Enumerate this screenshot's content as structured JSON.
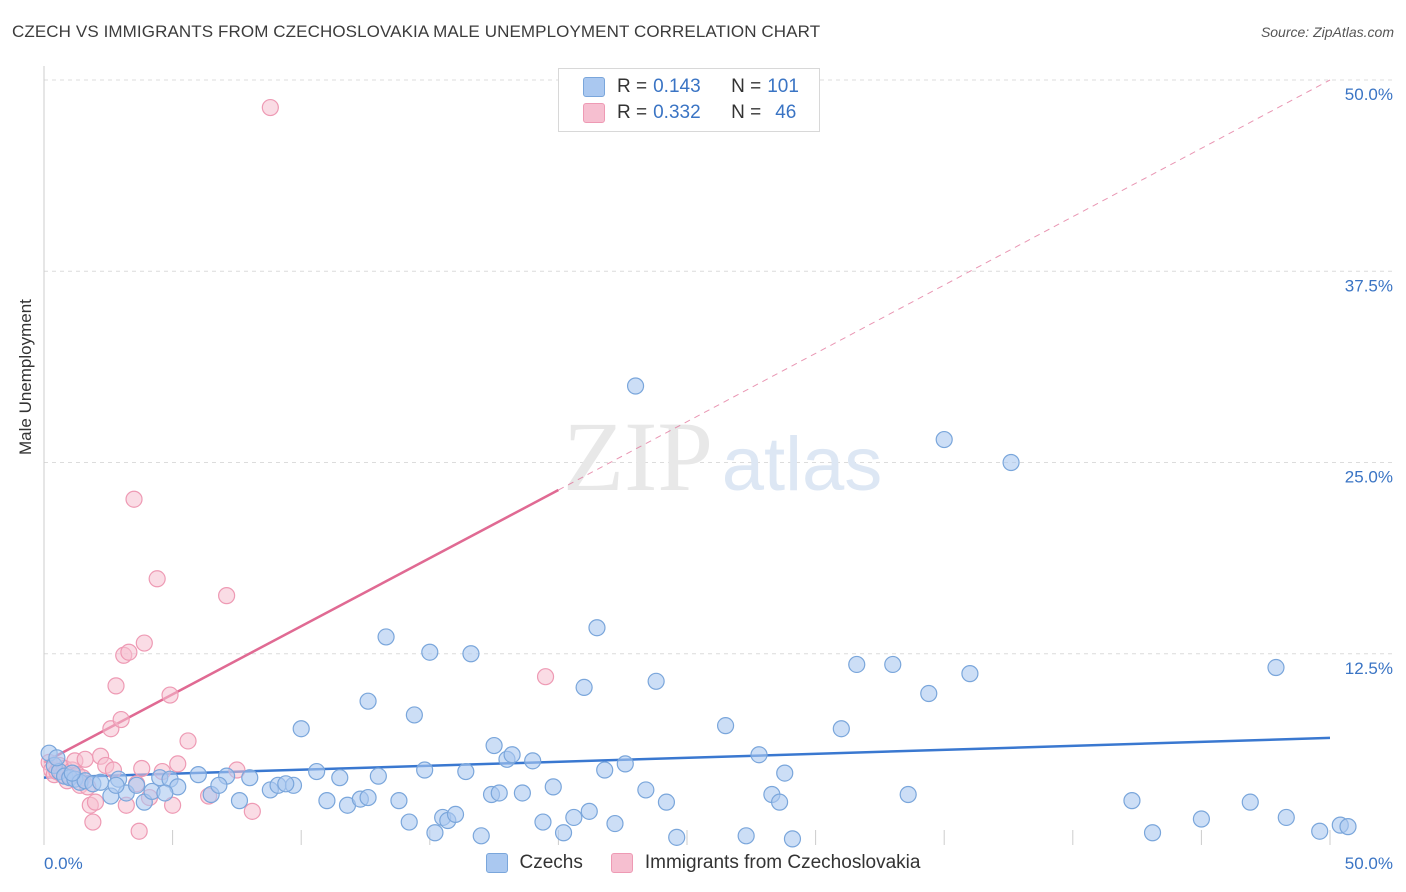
{
  "title": "CZECH VS IMMIGRANTS FROM CZECHOSLOVAKIA MALE UNEMPLOYMENT CORRELATION CHART",
  "source": "Source: ZipAtlas.com",
  "watermark": {
    "zip": "ZIP",
    "atlas": "atlas"
  },
  "colors": {
    "czech_fill": "#aac8f0",
    "czech_stroke": "#7aa6db",
    "czech_line": "#3a78d0",
    "imm_fill": "#f6bfd0",
    "imm_stroke": "#ee9ab4",
    "imm_line": "#e06a93",
    "grid": "#dcdcdc",
    "tick_text": "#3a74c4"
  },
  "legend": {
    "rows": [
      {
        "r_label": "R = ",
        "r_value": "0.143",
        "n_label": "N = ",
        "n_value": "101"
      },
      {
        "r_label": "R = ",
        "r_value": "0.332",
        "n_label": "N = ",
        "n_value": "46"
      }
    ]
  },
  "bottom_legend": [
    "Czechs",
    "Immigrants from Czechoslovakia"
  ],
  "chart_data": {
    "type": "scatter",
    "xlabel": "",
    "ylabel": "Male Unemployment",
    "xlim": [
      0,
      50
    ],
    "ylim": [
      0,
      50
    ],
    "x_tick_labels": [
      "0.0%",
      "50.0%"
    ],
    "y_ticks": [
      12.5,
      25.0,
      37.5,
      50.0
    ],
    "y_tick_labels": [
      "12.5%",
      "25.0%",
      "37.5%",
      "50.0%"
    ],
    "series": [
      {
        "name": "Czechs",
        "trend": {
          "x": [
            0,
            50
          ],
          "y": [
            4.4,
            7.0
          ]
        },
        "points": [
          [
            0.2,
            6.0
          ],
          [
            0.4,
            5.2
          ],
          [
            0.6,
            4.8
          ],
          [
            0.8,
            4.5
          ],
          [
            1.0,
            4.4
          ],
          [
            1.2,
            4.3
          ],
          [
            1.4,
            4.1
          ],
          [
            1.6,
            4.2
          ],
          [
            1.9,
            4.0
          ],
          [
            2.2,
            4.1
          ],
          [
            2.6,
            3.2
          ],
          [
            2.9,
            4.3
          ],
          [
            3.2,
            3.4
          ],
          [
            3.6,
            3.9
          ],
          [
            3.9,
            2.8
          ],
          [
            4.2,
            3.5
          ],
          [
            4.5,
            4.4
          ],
          [
            4.9,
            4.3
          ],
          [
            5.2,
            3.8
          ],
          [
            6.0,
            4.6
          ],
          [
            6.5,
            3.3
          ],
          [
            7.1,
            4.5
          ],
          [
            7.6,
            2.9
          ],
          [
            8.0,
            4.4
          ],
          [
            8.8,
            3.6
          ],
          [
            9.1,
            3.9
          ],
          [
            9.7,
            3.9
          ],
          [
            10.0,
            7.6
          ],
          [
            10.6,
            4.8
          ],
          [
            11.0,
            2.9
          ],
          [
            11.5,
            4.4
          ],
          [
            11.8,
            2.6
          ],
          [
            12.3,
            3.0
          ],
          [
            12.6,
            3.1
          ],
          [
            12.6,
            9.4
          ],
          [
            13.0,
            4.5
          ],
          [
            13.3,
            13.6
          ],
          [
            13.8,
            2.9
          ],
          [
            14.2,
            1.5
          ],
          [
            14.4,
            8.5
          ],
          [
            14.8,
            4.9
          ],
          [
            15.0,
            12.6
          ],
          [
            15.2,
            0.8
          ],
          [
            15.5,
            1.8
          ],
          [
            15.7,
            1.6
          ],
          [
            16.0,
            2.0
          ],
          [
            16.4,
            4.8
          ],
          [
            16.6,
            12.5
          ],
          [
            17.0,
            0.6
          ],
          [
            17.4,
            3.3
          ],
          [
            17.7,
            3.4
          ],
          [
            17.5,
            6.5
          ],
          [
            18.0,
            5.6
          ],
          [
            18.2,
            5.9
          ],
          [
            18.6,
            3.4
          ],
          [
            19.0,
            5.5
          ],
          [
            19.4,
            1.5
          ],
          [
            19.8,
            3.8
          ],
          [
            20.2,
            0.8
          ],
          [
            20.6,
            1.8
          ],
          [
            21.0,
            10.3
          ],
          [
            21.2,
            2.2
          ],
          [
            21.5,
            14.2
          ],
          [
            21.8,
            4.9
          ],
          [
            22.2,
            1.4
          ],
          [
            22.6,
            5.3
          ],
          [
            23.0,
            30.0
          ],
          [
            23.4,
            3.6
          ],
          [
            23.8,
            10.7
          ],
          [
            24.2,
            2.8
          ],
          [
            24.6,
            0.5
          ],
          [
            26.5,
            7.8
          ],
          [
            27.3,
            0.6
          ],
          [
            27.8,
            5.9
          ],
          [
            28.3,
            3.3
          ],
          [
            28.6,
            2.8
          ],
          [
            28.8,
            4.7
          ],
          [
            29.1,
            0.4
          ],
          [
            31.0,
            7.6
          ],
          [
            31.6,
            11.8
          ],
          [
            33.0,
            11.8
          ],
          [
            33.6,
            3.3
          ],
          [
            34.4,
            9.9
          ],
          [
            35.0,
            26.5
          ],
          [
            36.0,
            11.2
          ],
          [
            37.6,
            25.0
          ],
          [
            42.3,
            2.9
          ],
          [
            43.1,
            0.8
          ],
          [
            45.0,
            1.7
          ],
          [
            46.9,
            2.8
          ],
          [
            47.9,
            11.6
          ],
          [
            48.3,
            1.8
          ],
          [
            49.6,
            0.9
          ],
          [
            50.4,
            1.3
          ],
          [
            50.7,
            1.2
          ],
          [
            0.5,
            5.7
          ],
          [
            1.1,
            4.7
          ],
          [
            2.8,
            3.9
          ],
          [
            4.7,
            3.4
          ],
          [
            6.8,
            3.9
          ],
          [
            9.4,
            4.0
          ]
        ]
      },
      {
        "name": "Immigrants from Czechoslovakia",
        "trend": {
          "x": [
            0,
            20
          ],
          "y": [
            5.4,
            23.2
          ]
        },
        "trend_extension": {
          "x": [
            20,
            50
          ],
          "y": [
            23.2,
            50.0
          ]
        },
        "points": [
          [
            0.2,
            5.4
          ],
          [
            0.3,
            4.9
          ],
          [
            0.4,
            4.6
          ],
          [
            0.5,
            4.8
          ],
          [
            0.6,
            5.2
          ],
          [
            0.7,
            4.6
          ],
          [
            0.8,
            5.0
          ],
          [
            0.9,
            4.2
          ],
          [
            1.0,
            4.5
          ],
          [
            1.1,
            4.9
          ],
          [
            1.2,
            5.5
          ],
          [
            1.3,
            4.6
          ],
          [
            1.4,
            3.9
          ],
          [
            1.5,
            4.4
          ],
          [
            1.6,
            5.6
          ],
          [
            1.7,
            3.8
          ],
          [
            1.8,
            2.6
          ],
          [
            1.9,
            1.5
          ],
          [
            2.0,
            2.8
          ],
          [
            2.2,
            5.8
          ],
          [
            2.4,
            5.2
          ],
          [
            2.6,
            7.6
          ],
          [
            2.7,
            4.9
          ],
          [
            2.8,
            10.4
          ],
          [
            3.0,
            8.2
          ],
          [
            3.1,
            12.4
          ],
          [
            3.2,
            2.6
          ],
          [
            3.3,
            12.6
          ],
          [
            3.5,
            22.6
          ],
          [
            3.6,
            4.0
          ],
          [
            3.7,
            0.9
          ],
          [
            3.8,
            5.0
          ],
          [
            3.9,
            13.2
          ],
          [
            4.1,
            3.1
          ],
          [
            4.4,
            17.4
          ],
          [
            4.6,
            4.8
          ],
          [
            4.9,
            9.8
          ],
          [
            5.0,
            2.6
          ],
          [
            5.2,
            5.3
          ],
          [
            5.6,
            6.8
          ],
          [
            6.4,
            3.2
          ],
          [
            7.1,
            16.3
          ],
          [
            7.5,
            4.9
          ],
          [
            8.1,
            2.2
          ],
          [
            8.8,
            48.2
          ],
          [
            19.5,
            11.0
          ]
        ]
      }
    ]
  }
}
